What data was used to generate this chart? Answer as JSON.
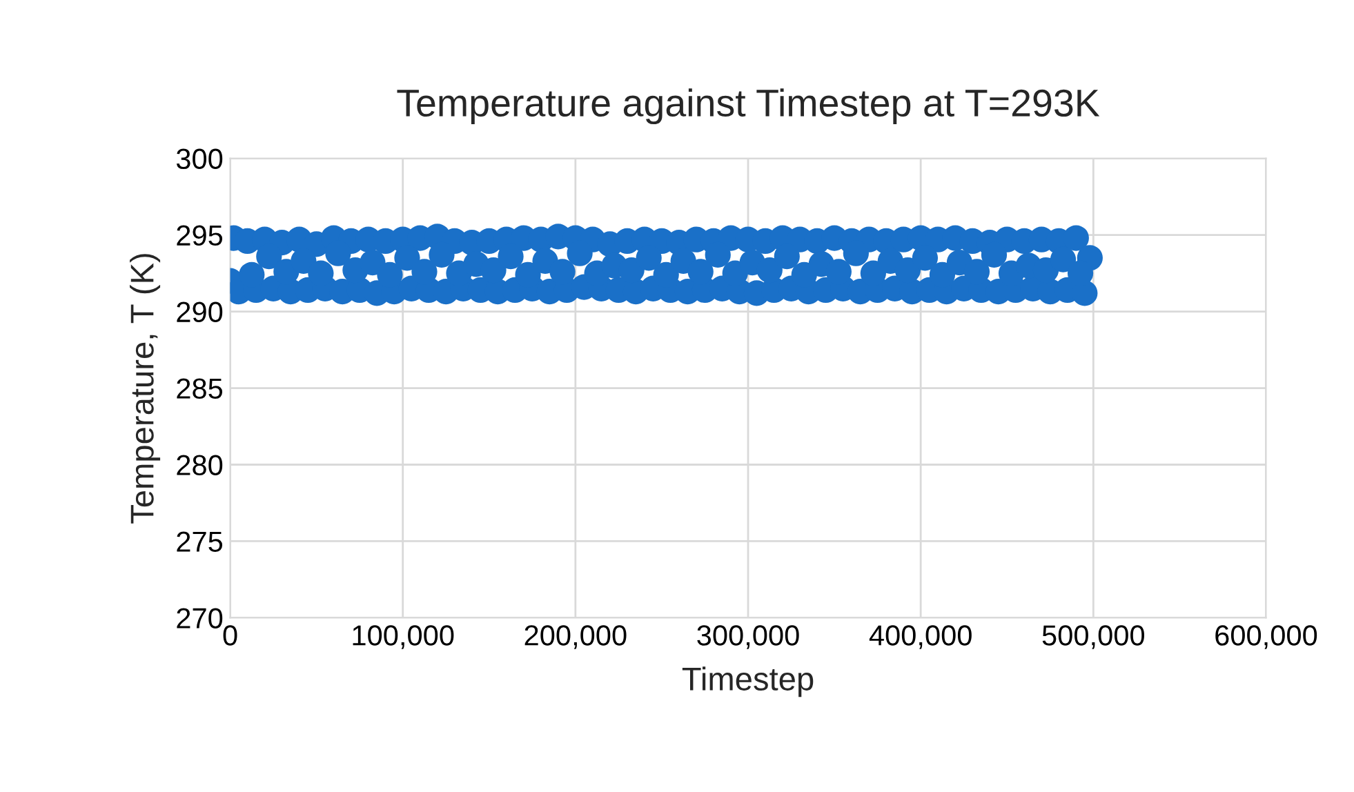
{
  "chart_data": {
    "type": "scatter",
    "title": "Temperature against Timestep at T=293K",
    "xlabel": "Timestep",
    "ylabel": "Temperature, T (K)",
    "xlim": [
      0,
      600000
    ],
    "xticks": [
      {
        "value": 0,
        "label": "0"
      },
      {
        "value": 100000,
        "label": "100,000"
      },
      {
        "value": 200000,
        "label": "200,000"
      },
      {
        "value": 300000,
        "label": "300,000"
      },
      {
        "value": 400000,
        "label": "400,000"
      },
      {
        "value": 500000,
        "label": "500,000"
      },
      {
        "value": 600000,
        "label": "600,000"
      }
    ],
    "ylim": [
      270,
      300
    ],
    "yticks": [
      270,
      275,
      280,
      285,
      290,
      295,
      300
    ],
    "grid": true,
    "marker": "circle",
    "series": [
      {
        "color": "#1a70c8",
        "x": [
          0,
          2000,
          5000,
          10000,
          15000,
          20000,
          25000,
          30000,
          35000,
          40000,
          45000,
          50000,
          55000,
          60000,
          65000,
          70000,
          75000,
          80000,
          85000,
          90000,
          95000,
          100000,
          105000,
          110000,
          115000,
          120000,
          125000,
          130000,
          135000,
          140000,
          145000,
          150000,
          155000,
          160000,
          165000,
          170000,
          175000,
          180000,
          185000,
          190000,
          195000,
          200000,
          205000,
          210000,
          215000,
          220000,
          225000,
          230000,
          235000,
          240000,
          245000,
          250000,
          255000,
          260000,
          265000,
          270000,
          275000,
          280000,
          285000,
          290000,
          295000,
          300000,
          305000,
          310000,
          315000,
          320000,
          325000,
          330000,
          335000,
          340000,
          345000,
          350000,
          355000,
          360000,
          365000,
          370000,
          375000,
          380000,
          385000,
          390000,
          395000,
          400000,
          405000,
          410000,
          415000,
          420000,
          425000,
          430000,
          435000,
          440000,
          445000,
          450000,
          455000,
          460000,
          465000,
          470000,
          475000,
          480000,
          485000,
          490000,
          495000,
          498000
        ],
        "values": [
          292.0,
          294.8,
          291.3,
          294.6,
          291.4,
          294.7,
          291.5,
          294.5,
          291.3,
          294.7,
          291.4,
          294.4,
          291.5,
          294.8,
          291.3,
          294.6,
          291.4,
          294.7,
          291.2,
          294.6,
          291.3,
          294.7,
          291.5,
          294.8,
          291.4,
          294.9,
          291.3,
          294.6,
          291.5,
          294.5,
          291.4,
          294.6,
          291.3,
          294.7,
          291.4,
          294.8,
          291.5,
          294.7,
          291.3,
          294.9,
          291.4,
          294.8,
          291.6,
          294.7,
          291.5,
          294.4,
          291.4,
          294.6,
          291.3,
          294.7,
          291.5,
          294.6,
          291.4,
          294.5,
          291.3,
          294.7,
          291.4,
          294.6,
          291.5,
          294.8,
          291.3,
          294.7,
          291.2,
          294.6,
          291.4,
          294.8,
          291.5,
          294.7,
          291.3,
          294.6,
          291.4,
          294.8,
          291.5,
          294.6,
          291.3,
          294.7,
          291.4,
          294.6,
          291.5,
          294.7,
          291.3,
          294.8,
          291.4,
          294.7,
          291.3,
          294.8,
          291.5,
          294.6,
          291.4,
          294.5,
          291.3,
          294.7,
          291.4,
          294.6,
          291.5,
          294.7,
          291.3,
          294.6,
          291.4,
          294.8,
          291.2,
          293.5
        ]
      },
      {
        "color": "#1a70c8",
        "x": [
          12500,
          22500,
          32500,
          42500,
          52500,
          62500,
          72500,
          82500,
          92500,
          102500,
          112500,
          122500,
          132500,
          142500,
          152500,
          162500,
          172500,
          182500,
          192500,
          202500,
          212500,
          222500,
          232500,
          242500,
          252500,
          262500,
          272500,
          282500,
          292500,
          302500,
          312500,
          322500,
          332500,
          342500,
          352500,
          362500,
          372500,
          382500,
          392500,
          402500,
          412500,
          422500,
          432500,
          442500,
          452500,
          462500,
          472500,
          482500,
          492500
        ],
        "values": [
          292.4,
          293.6,
          292.6,
          293.3,
          292.5,
          293.8,
          292.7,
          293.2,
          292.4,
          293.5,
          292.6,
          293.7,
          292.5,
          293.1,
          292.7,
          293.6,
          292.4,
          293.3,
          292.6,
          293.8,
          292.5,
          293.0,
          292.7,
          293.5,
          292.4,
          293.3,
          292.6,
          293.7,
          292.5,
          293.2,
          292.7,
          293.6,
          292.4,
          293.1,
          292.6,
          293.8,
          292.5,
          293.3,
          292.7,
          293.5,
          292.4,
          293.2,
          292.6,
          293.7,
          292.5,
          293.0,
          292.7,
          293.4,
          292.5
        ]
      }
    ]
  }
}
